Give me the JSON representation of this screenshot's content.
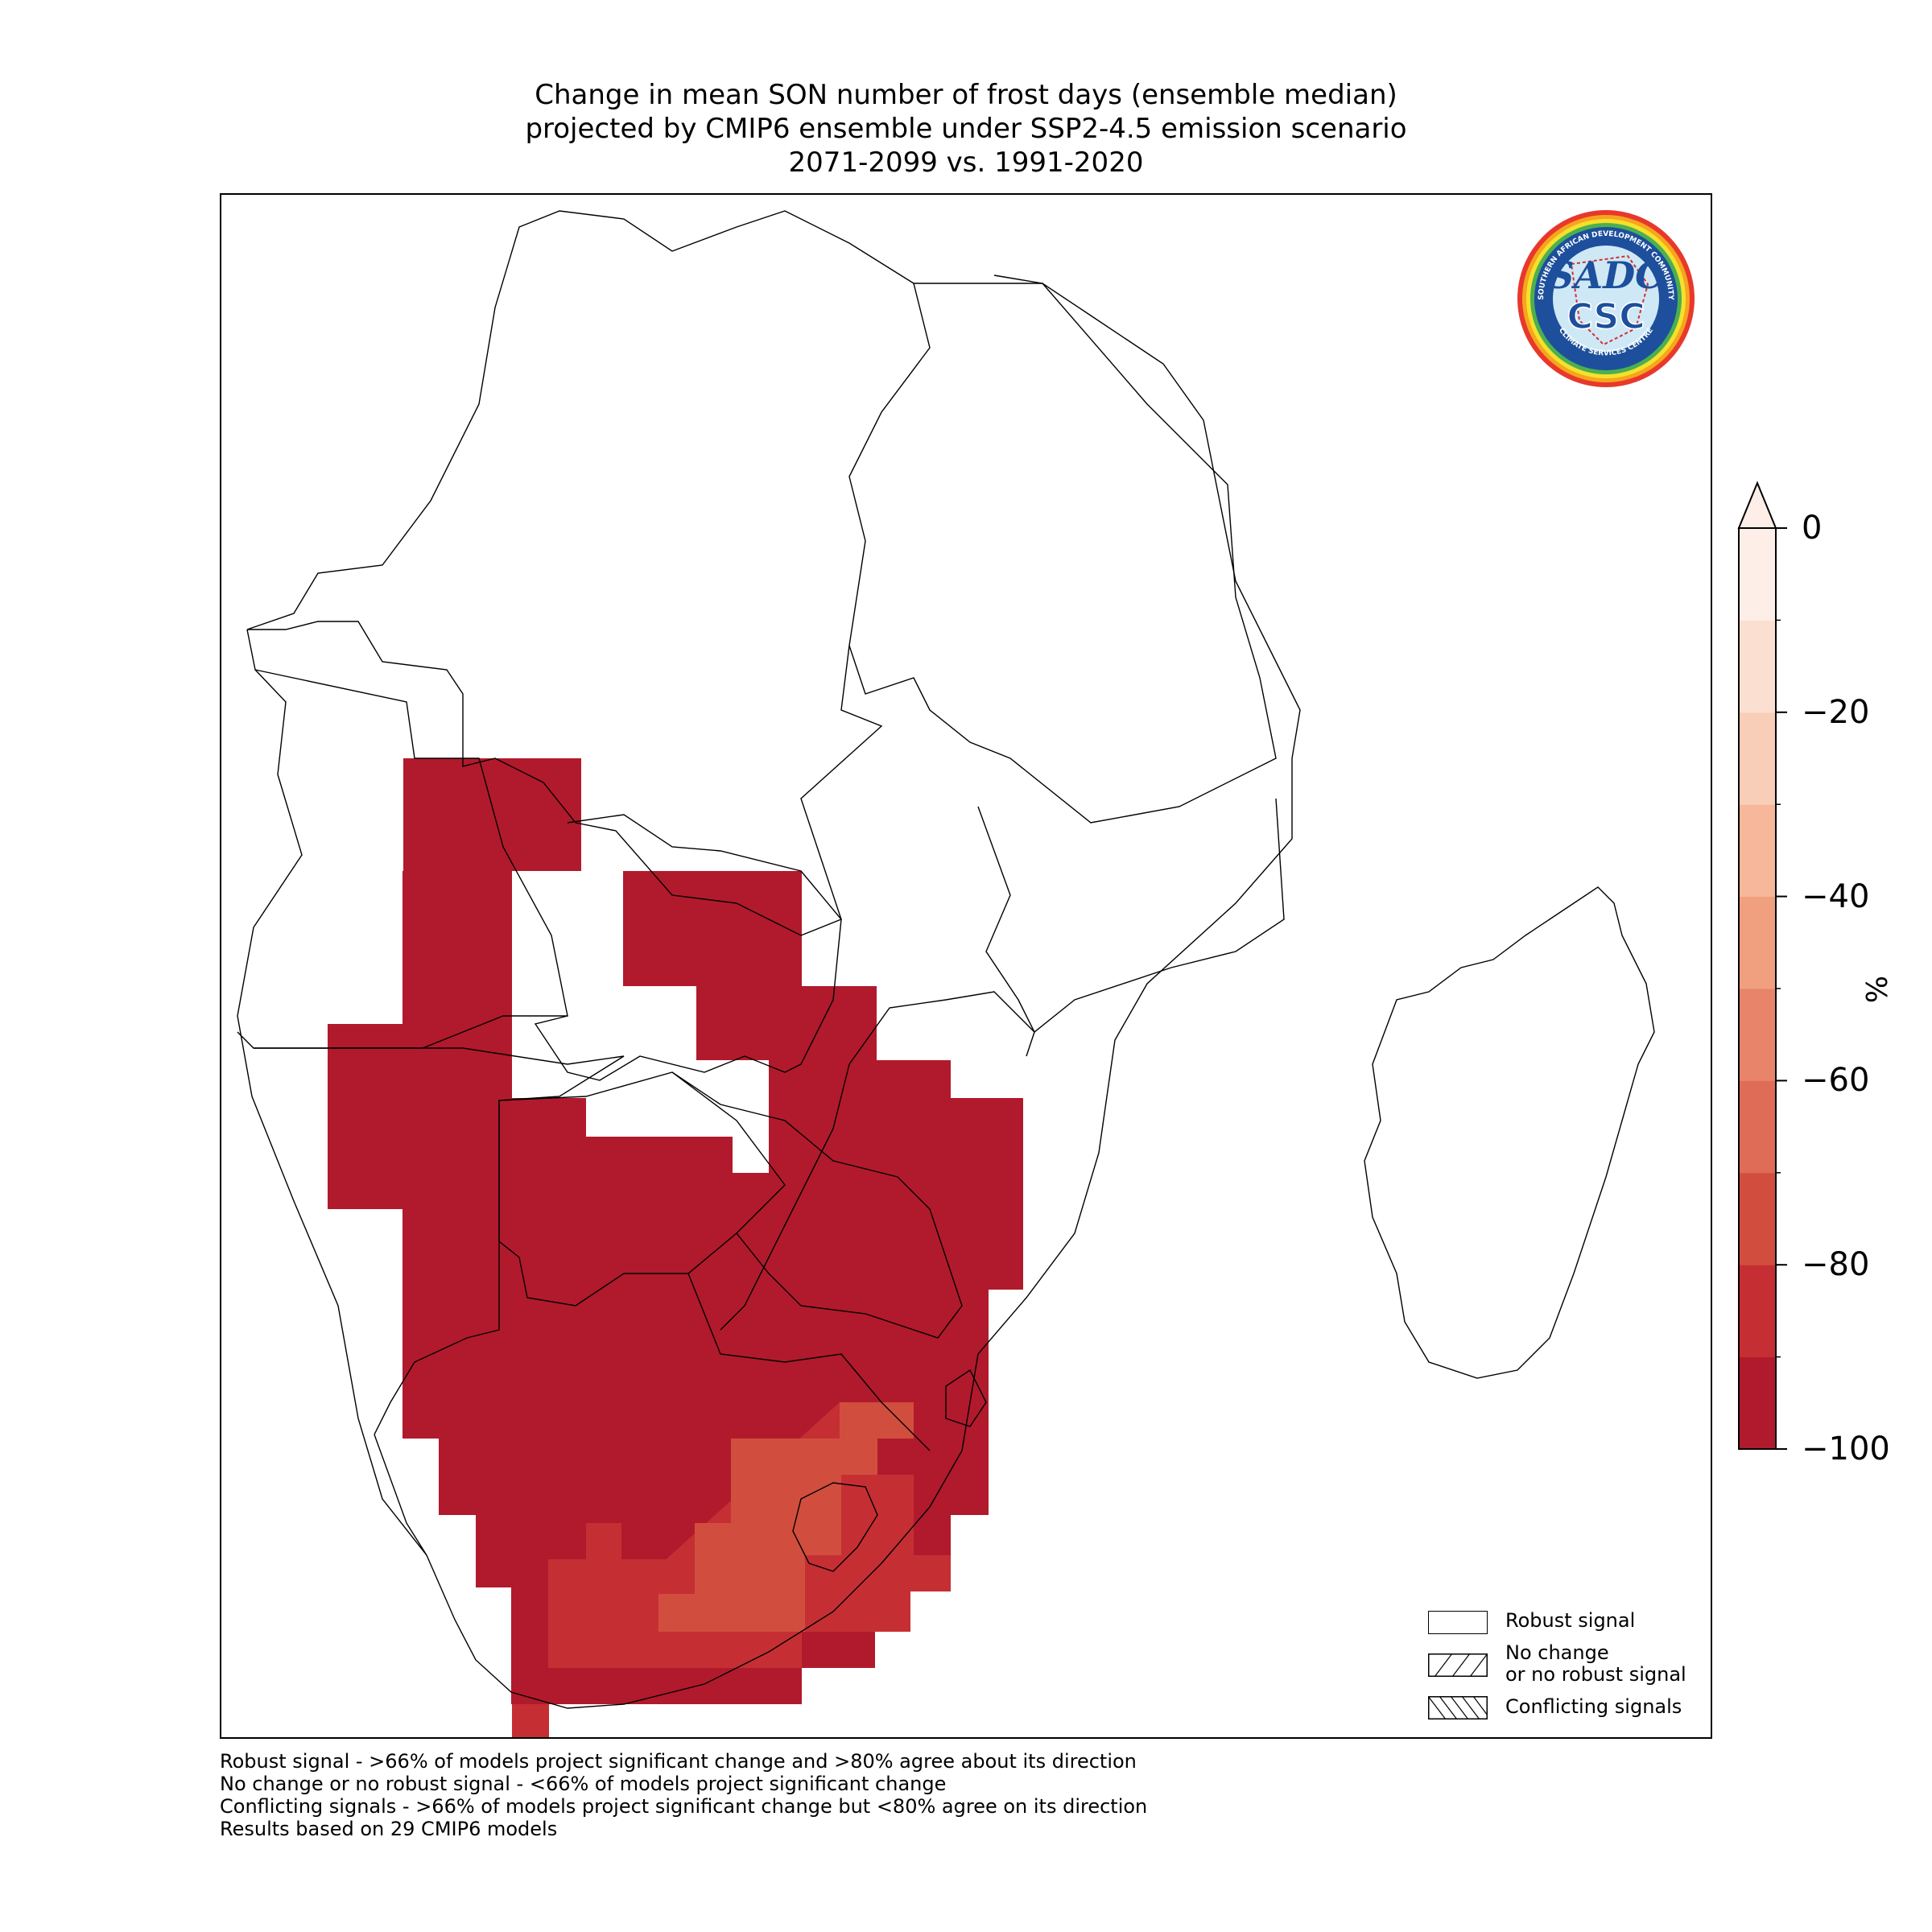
{
  "title": {
    "line1": "Change in mean SON number of frost days (ensemble median)",
    "line2": "projected by CMIP6 ensemble under SSP2-4.5 emission scenario",
    "line3": "2071-2099 vs. 1991-2020"
  },
  "logo": {
    "ring_text_top": "SOUTHERN AFRICAN DEVELOPMENT COMMUNITY",
    "ring_text_bottom": "CLIMATE SERVICES CENTRE",
    "mark_top": "SADC",
    "mark_bottom": "CSC"
  },
  "legend": {
    "items": [
      {
        "label": "Robust signal",
        "pattern": "none"
      },
      {
        "label": "No change\nor no robust signal",
        "pattern": "forward-hatch"
      },
      {
        "label": "Conflicting signals",
        "pattern": "back-hatch"
      }
    ]
  },
  "footnotes": [
    "Robust signal - >66% of models project significant change and >80% agree about its direction",
    "No change or no robust signal - <66% of models project significant change",
    "Conflicting signals - >66% of models project significant change but <80% agree on its direction",
    "Results based on 29 CMIP6 models"
  ],
  "colorbar": {
    "unit": "%",
    "min": -100,
    "max": 0,
    "extend": "max",
    "ticks": [
      0,
      -20,
      -40,
      -60,
      -80,
      -100
    ],
    "tick_labels": [
      "0",
      "−20",
      "−40",
      "−60",
      "−80",
      "−100"
    ],
    "colors": [
      "#b11a2c",
      "#c52f33",
      "#d14e3e",
      "#de6c56",
      "#e8846a",
      "#f0a07f",
      "#f6b79a",
      "#f9ceb8",
      "#fbe0d2",
      "#fdeee7"
    ]
  },
  "map_data": {
    "region": "Southern Africa",
    "cell_value_range_percent": [
      -100,
      -60
    ],
    "dominant_value_percent": -100,
    "least_decrease_area": "Lesotho and surrounding highlands"
  }
}
